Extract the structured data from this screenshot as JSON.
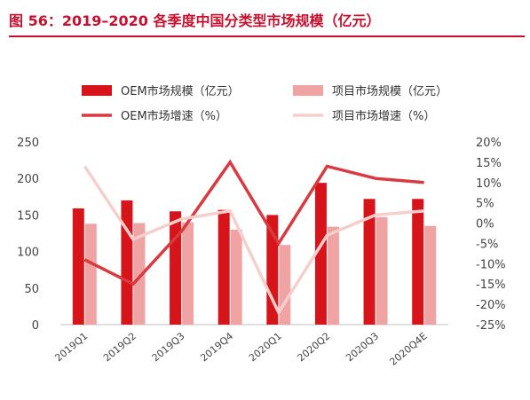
{
  "title": "图 56：2019–2020 各季度中国分类型市场规模（亿元）",
  "chart_data": {
    "type": "bar",
    "title": "图 56：2019–2020 各季度中国分类型市场规模（亿元）",
    "categories": [
      "2019Q1",
      "2019Q2",
      "2019Q3",
      "2019Q4",
      "2020Q1",
      "2020Q2",
      "2020Q3",
      "2020Q4E"
    ],
    "series": [
      {
        "name": "OEM市场规模（亿元）",
        "kind": "bar",
        "axis": "left",
        "color": "#d7141a",
        "values": [
          159,
          170,
          155,
          157,
          150,
          194,
          172,
          172
        ]
      },
      {
        "name": "项目市场规模（亿元）",
        "kind": "bar",
        "axis": "left",
        "color": "#f0a3a3",
        "values": [
          138,
          139,
          140,
          130,
          109,
          134,
          147,
          135
        ]
      },
      {
        "name": "OEM市场增速（%）",
        "kind": "line",
        "axis": "right",
        "color": "#d9393f",
        "values": [
          -9,
          -15,
          -2,
          15,
          -5,
          14,
          11,
          10
        ]
      },
      {
        "name": "项目市场增速（%）",
        "kind": "line",
        "axis": "right",
        "color": "#f6cfcd",
        "values": [
          14,
          -4,
          1,
          3,
          -22,
          -3,
          2,
          3
        ]
      }
    ],
    "y_left": {
      "range": [
        0,
        250
      ],
      "ticks": [
        "0",
        "50",
        "100",
        "150",
        "200",
        "250"
      ]
    },
    "y_right": {
      "range": [
        -25,
        20
      ],
      "ticks": [
        "-25%",
        "-20%",
        "-15%",
        "-10%",
        "-5%",
        "0%",
        "5%",
        "10%",
        "15%",
        "20%"
      ]
    },
    "grid": false,
    "legend": "top"
  }
}
